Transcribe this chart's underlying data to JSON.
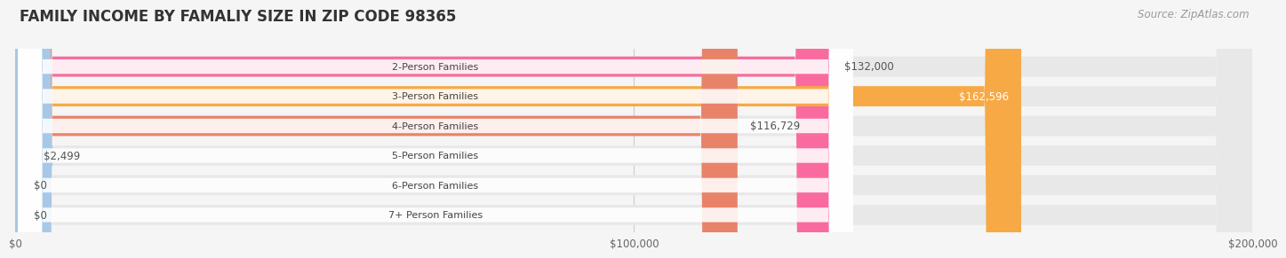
{
  "title": "FAMILY INCOME BY FAMALIY SIZE IN ZIP CODE 98365",
  "source": "Source: ZipAtlas.com",
  "categories": [
    "2-Person Families",
    "3-Person Families",
    "4-Person Families",
    "5-Person Families",
    "6-Person Families",
    "7+ Person Families"
  ],
  "values": [
    132000,
    162596,
    116729,
    2499,
    0,
    0
  ],
  "bar_colors": [
    "#F96B9E",
    "#F7A945",
    "#E8836A",
    "#A8C8E8",
    "#C8A0D8",
    "#6ECFD8"
  ],
  "xlim": [
    0,
    200000
  ],
  "xticks": [
    0,
    100000,
    200000
  ],
  "xtick_labels": [
    "$0",
    "$100,000",
    "$200,000"
  ],
  "bg_color": "#f5f5f5",
  "bar_bg_color": "#e8e8e8",
  "title_fontsize": 12,
  "source_fontsize": 8.5,
  "label_fontsize": 8.5,
  "category_fontsize": 8
}
